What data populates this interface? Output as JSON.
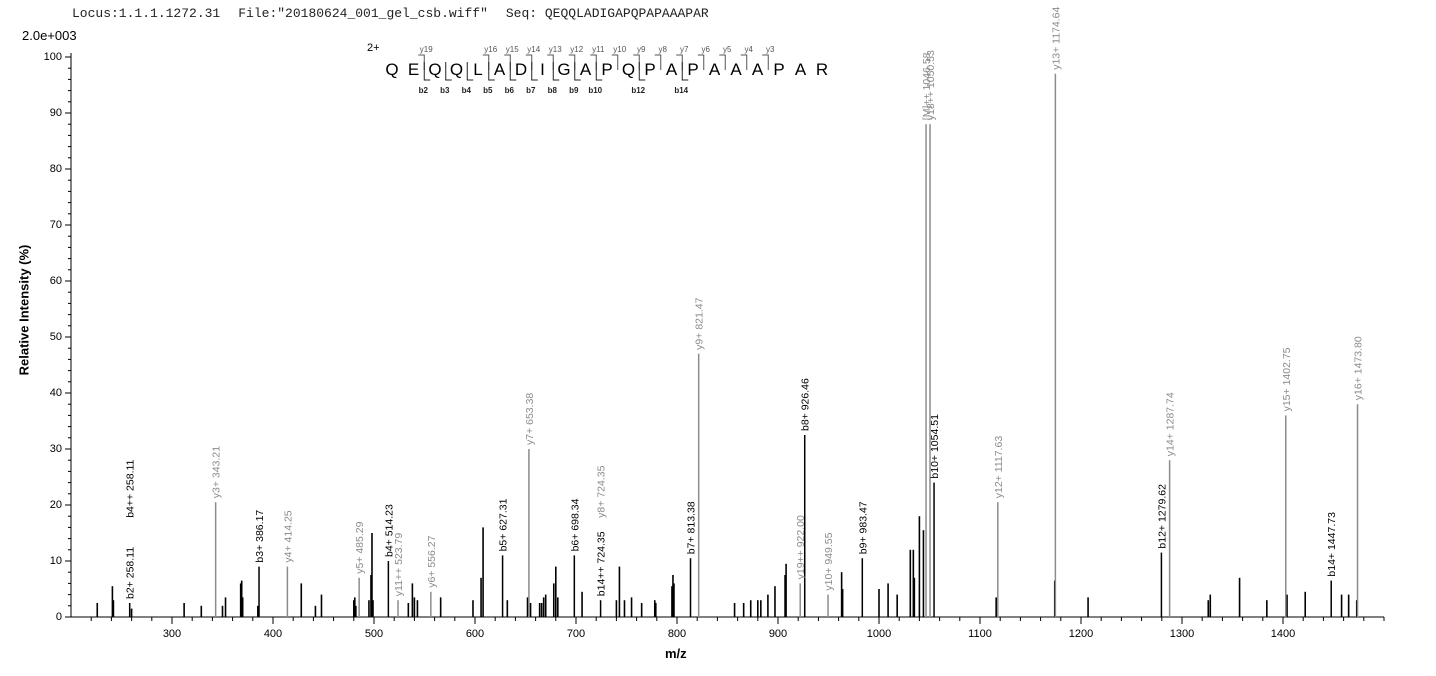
{
  "header": {
    "locus": "Locus:1.1.1.1272.31",
    "file": "File:\"20180624_001_gel_csb.wiff\"",
    "seq": "Seq: QEQQLADIGAPQPAPAAAPAR"
  },
  "scale_label": "2.0e+003",
  "sequence": {
    "charge": "2+",
    "residues": [
      "Q",
      "E",
      "Q",
      "Q",
      "L",
      "A",
      "D",
      "I",
      "G",
      "A",
      "P",
      "Q",
      "P",
      "A",
      "P",
      "A",
      "A",
      "A",
      "P",
      "A",
      "R"
    ],
    "y_ions": [
      "y19",
      "y16",
      "y15",
      "y14",
      "y13",
      "y12",
      "y11",
      "y10",
      "y9",
      "y8",
      "y7",
      "y6",
      "y5",
      "y4",
      "y3"
    ],
    "b_ions": [
      "b2",
      "b3",
      "b4",
      "b5",
      "b6",
      "b7",
      "b8",
      "b9",
      "b10",
      "b12",
      "b14"
    ]
  },
  "chart_data": {
    "type": "bar",
    "xlabel": "m/z",
    "ylabel": "Relative   Intensity (%)",
    "xlim": [
      200,
      1500
    ],
    "ylim": [
      0,
      100
    ],
    "x_ticks": [
      300,
      400,
      500,
      600,
      700,
      800,
      900,
      1000,
      1100,
      1200,
      1300,
      1400
    ],
    "y_ticks": [
      0,
      10,
      20,
      30,
      40,
      50,
      60,
      70,
      80,
      90,
      100
    ],
    "colors": {
      "b_ion": "#000000",
      "y_ion": "#8c8c8c",
      "unlabeled": "#000000"
    },
    "labeled_peaks": [
      {
        "mz": 258.11,
        "intensity": 2.5,
        "label": "b2+ 258.11",
        "ion": "b"
      },
      {
        "mz": 258.11,
        "intensity": 17,
        "label": "b4++ 258.11",
        "ion": "b",
        "label_only": true
      },
      {
        "mz": 343.21,
        "intensity": 20.5,
        "label": "y3+ 343.21",
        "ion": "y"
      },
      {
        "mz": 386.17,
        "intensity": 9,
        "label": "b3+ 386.17",
        "ion": "b"
      },
      {
        "mz": 414.25,
        "intensity": 9,
        "label": "y4+ 414.25",
        "ion": "y"
      },
      {
        "mz": 485.29,
        "intensity": 7,
        "label": "y5+ 485.29",
        "ion": "y"
      },
      {
        "mz": 514.23,
        "intensity": 10,
        "label": "b4+ 514.23",
        "ion": "b"
      },
      {
        "mz": 523.79,
        "intensity": 3,
        "label": "y11++ 523.79",
        "ion": "y"
      },
      {
        "mz": 556.27,
        "intensity": 4.5,
        "label": "y6+ 556.27",
        "ion": "y"
      },
      {
        "mz": 627.31,
        "intensity": 11,
        "label": "b5+ 627.31",
        "ion": "b"
      },
      {
        "mz": 653.38,
        "intensity": 30,
        "label": "y7+ 653.38",
        "ion": "y"
      },
      {
        "mz": 698.34,
        "intensity": 11,
        "label": "b6+ 698.34",
        "ion": "b"
      },
      {
        "mz": 724.35,
        "intensity": 3,
        "label": "b14++ 724.35",
        "ion": "b"
      },
      {
        "mz": 724.35,
        "intensity": 17,
        "label": "y8+ 724.35",
        "ion": "y",
        "label_only": true
      },
      {
        "mz": 813.38,
        "intensity": 10.5,
        "label": "b7+ 813.38",
        "ion": "b"
      },
      {
        "mz": 821.47,
        "intensity": 47,
        "label": "y9+ 821.47",
        "ion": "y"
      },
      {
        "mz": 922.0,
        "intensity": 6,
        "label": "y19++ 922.00",
        "ion": "y"
      },
      {
        "mz": 926.46,
        "intensity": 32.5,
        "label": "b8+ 926.46",
        "ion": "b"
      },
      {
        "mz": 949.55,
        "intensity": 4,
        "label": "y10+ 949.55",
        "ion": "y"
      },
      {
        "mz": 983.47,
        "intensity": 10.5,
        "label": "b9+ 983.47",
        "ion": "b"
      },
      {
        "mz": 1046.58,
        "intensity": 88,
        "label": "[M]++ 1046.58",
        "ion": "y"
      },
      {
        "mz": 1050.53,
        "intensity": 88,
        "label": "y18++ 1050.53",
        "ion": "y"
      },
      {
        "mz": 1054.51,
        "intensity": 24,
        "label": "b10+ 1054.51",
        "ion": "b"
      },
      {
        "mz": 1117.63,
        "intensity": 20.5,
        "label": "y12+ 1117.63",
        "ion": "y"
      },
      {
        "mz": 1174.64,
        "intensity": 97,
        "label": "y13+ 1174.64",
        "ion": "y"
      },
      {
        "mz": 1279.62,
        "intensity": 11.5,
        "label": "b12+ 1279.62",
        "ion": "b"
      },
      {
        "mz": 1287.74,
        "intensity": 28,
        "label": "y14+ 1287.74",
        "ion": "y"
      },
      {
        "mz": 1402.75,
        "intensity": 36,
        "label": "y15+ 1402.75",
        "ion": "y"
      },
      {
        "mz": 1447.73,
        "intensity": 6.5,
        "label": "b14+ 1447.73",
        "ion": "b"
      },
      {
        "mz": 1473.8,
        "intensity": 38,
        "label": "y16+ 1473.80",
        "ion": "y"
      }
    ],
    "unlabeled_peaks": [
      [
        226,
        2.5
      ],
      [
        241,
        5.5
      ],
      [
        242,
        3
      ],
      [
        260,
        1.5
      ],
      [
        312,
        2.5
      ],
      [
        329,
        2
      ],
      [
        350,
        2
      ],
      [
        353,
        3.5
      ],
      [
        368,
        6
      ],
      [
        369,
        6.5
      ],
      [
        370,
        3.5
      ],
      [
        385,
        2
      ],
      [
        428,
        6
      ],
      [
        442,
        2
      ],
      [
        448,
        4
      ],
      [
        480,
        3
      ],
      [
        481,
        3.5
      ],
      [
        482,
        2
      ],
      [
        495,
        3
      ],
      [
        497,
        7.5
      ],
      [
        498,
        15
      ],
      [
        499,
        3
      ],
      [
        534,
        2.5
      ],
      [
        538,
        6
      ],
      [
        540,
        3.5
      ],
      [
        543,
        3
      ],
      [
        566,
        3.5
      ],
      [
        598,
        3
      ],
      [
        606,
        7
      ],
      [
        608,
        16
      ],
      [
        632,
        3
      ],
      [
        652,
        3.5
      ],
      [
        655,
        2.5
      ],
      [
        664,
        2.5
      ],
      [
        666,
        2.5
      ],
      [
        668,
        3.5
      ],
      [
        670,
        4
      ],
      [
        678,
        6
      ],
      [
        680,
        9
      ],
      [
        682,
        3.5
      ],
      [
        706,
        4.5
      ],
      [
        740,
        3
      ],
      [
        743,
        9
      ],
      [
        748,
        3
      ],
      [
        755,
        3.5
      ],
      [
        765,
        2.5
      ],
      [
        778,
        3
      ],
      [
        779,
        2.5
      ],
      [
        795,
        5.5
      ],
      [
        796,
        7.5
      ],
      [
        797,
        6
      ],
      [
        857,
        2.5
      ],
      [
        866,
        2.5
      ],
      [
        873,
        3
      ],
      [
        880,
        3
      ],
      [
        883,
        3
      ],
      [
        890,
        4
      ],
      [
        897,
        5.5
      ],
      [
        907,
        7.5
      ],
      [
        908,
        9.5
      ],
      [
        963,
        8
      ],
      [
        964,
        5
      ],
      [
        1000,
        5
      ],
      [
        1009,
        6
      ],
      [
        1018,
        4
      ],
      [
        1031,
        12
      ],
      [
        1034,
        12
      ],
      [
        1035,
        7
      ],
      [
        1040,
        18
      ],
      [
        1044,
        15.5
      ],
      [
        1116,
        3.5
      ],
      [
        1174,
        6.5
      ],
      [
        1207,
        3.5
      ],
      [
        1326,
        3
      ],
      [
        1328,
        4
      ],
      [
        1357,
        7
      ],
      [
        1384,
        3
      ],
      [
        1404,
        4
      ],
      [
        1422,
        4.5
      ],
      [
        1458,
        4
      ],
      [
        1465,
        4
      ],
      [
        1473,
        3
      ]
    ]
  }
}
